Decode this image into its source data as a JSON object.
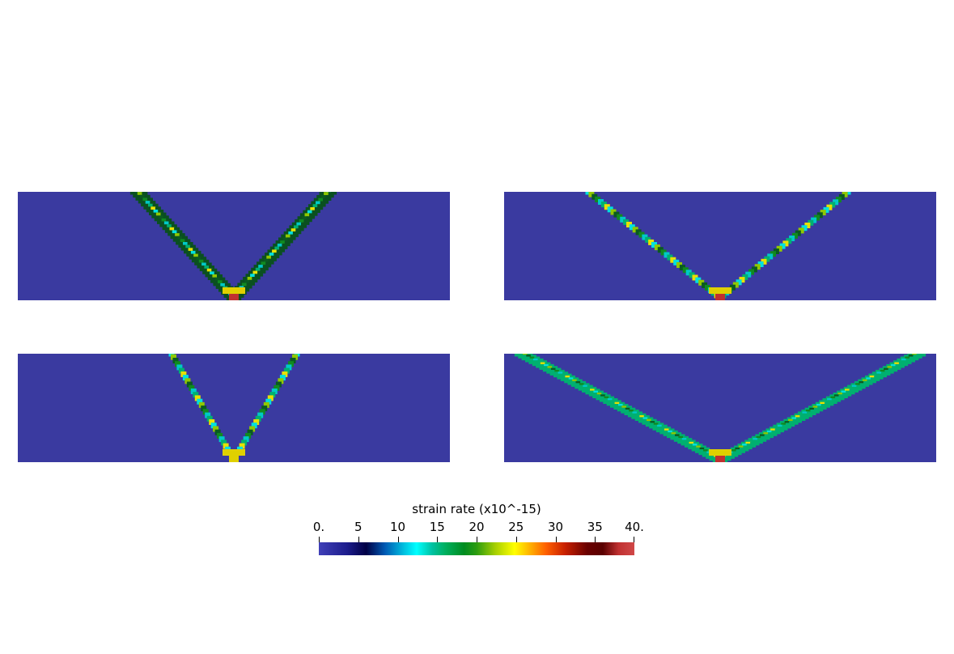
{
  "colorbar": {
    "title": "strain rate (x10^-15)",
    "min": 0,
    "max": 40,
    "ticks": [
      {
        "value": 0,
        "label": "0."
      },
      {
        "value": 5,
        "label": "5"
      },
      {
        "value": 10,
        "label": "10"
      },
      {
        "value": 15,
        "label": "15"
      },
      {
        "value": 20,
        "label": "20"
      },
      {
        "value": 25,
        "label": "25"
      },
      {
        "value": 30,
        "label": "30"
      },
      {
        "value": 35,
        "label": "35"
      },
      {
        "value": 40,
        "label": "40."
      }
    ]
  },
  "colors": {
    "background_field": "#3a3aa0",
    "field_dark": "#33338c"
  }
}
